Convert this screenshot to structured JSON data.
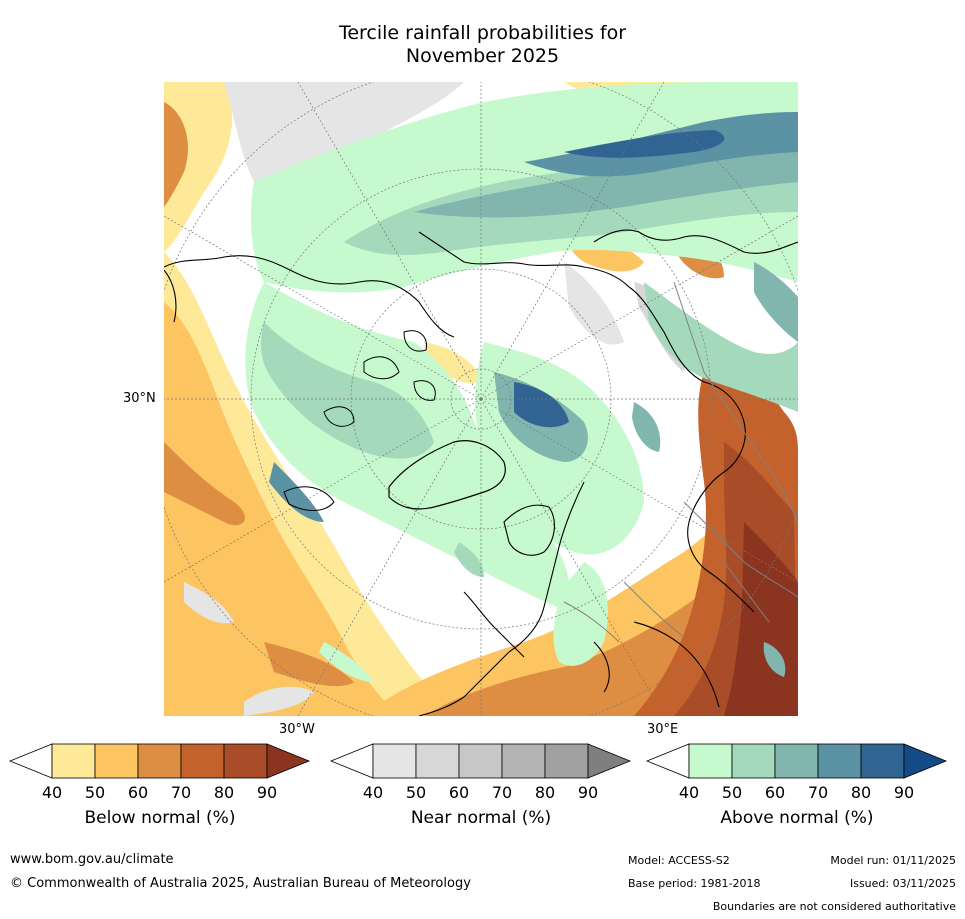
{
  "title": {
    "line1": "Tercile rainfall probabilities for",
    "line2": "November 2025"
  },
  "map": {
    "projection": "north-polar-stereographic",
    "labels": {
      "lat_30n": "30°N",
      "lon_30w": "30°W",
      "lon_30e": "30°E"
    },
    "colors": {
      "below": [
        "#ffffff",
        "#fee999",
        "#fdc462",
        "#dd8e42",
        "#c4622e",
        "#a94c28",
        "#8b3520"
      ],
      "near": [
        "#ffffff",
        "#e5e5e5",
        "#d7d7d7",
        "#c7c7c7",
        "#b4b4b4",
        "#a0a0a0",
        "#7f7f7f"
      ],
      "above": [
        "#ffffff",
        "#c7f9cf",
        "#a4d9bc",
        "#80b6ae",
        "#5c93a4",
        "#316493",
        "#144b86"
      ],
      "ocean": "#ffffff",
      "coast": "#000000",
      "border": "#808080",
      "grid": "#777777"
    }
  },
  "colorbars": [
    {
      "id": "below",
      "title": "Below normal (%)",
      "ticks": [
        "40",
        "50",
        "60",
        "70",
        "80",
        "90"
      ],
      "colors": [
        "#ffffff",
        "#fee999",
        "#fdc462",
        "#dd8e42",
        "#c4622e",
        "#a94c28",
        "#8b3520"
      ]
    },
    {
      "id": "near",
      "title": "Near normal (%)",
      "ticks": [
        "40",
        "50",
        "60",
        "70",
        "80",
        "90"
      ],
      "colors": [
        "#ffffff",
        "#e5e5e5",
        "#d7d7d7",
        "#c7c7c7",
        "#b4b4b4",
        "#a0a0a0",
        "#7f7f7f"
      ]
    },
    {
      "id": "above",
      "title": "Above normal (%)",
      "ticks": [
        "40",
        "50",
        "60",
        "70",
        "80",
        "90"
      ],
      "colors": [
        "#ffffff",
        "#c7f9cf",
        "#a4d9bc",
        "#80b6ae",
        "#5c93a4",
        "#316493",
        "#144b86"
      ]
    }
  ],
  "footer": {
    "url": "www.bom.gov.au/climate",
    "copyright": "© Commonwealth of Australia 2025, Australian Bureau of Meteorology",
    "model": "Model: ACCESS-S2",
    "base_period": "Base period: 1981-2018",
    "model_run": "Model run: 01/11/2025",
    "issued": "Issued: 03/11/2025",
    "disclaimer": "Boundaries are not considered authoritative"
  }
}
